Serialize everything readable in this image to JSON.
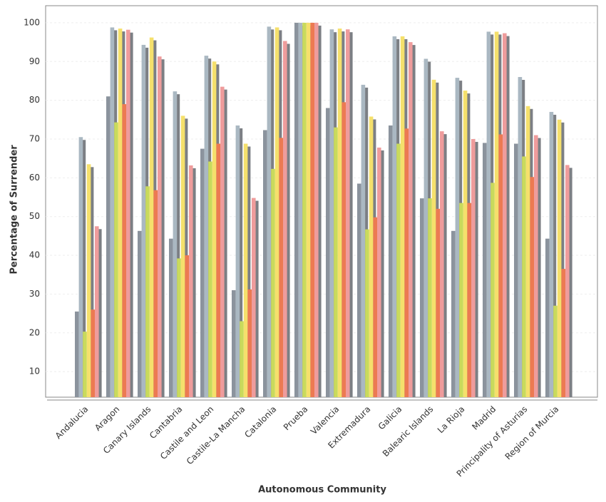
{
  "chart_data": {
    "type": "bar",
    "xlabel": "Autonomous Community",
    "ylabel": "Percentage of Surrender",
    "categories": [
      "Andalucia",
      "Aragon",
      "Canary Islands",
      "Cantabria",
      "Castile and Leon",
      "Castile-La Mancha",
      "Catalonia",
      "Prueba",
      "Valencia",
      "Extremadura",
      "Galicia",
      "Balearic Islands",
      "La Rioja",
      "Madrid",
      "Principality of Asturias",
      "Region of Murcia"
    ],
    "series": [
      {
        "color": "#8b939d",
        "values": [
          25.5,
          81,
          46.3,
          44.3,
          67.5,
          31,
          72.3,
          100,
          78,
          58.5,
          73.5,
          54.7,
          46.3,
          69,
          68.8,
          44.3
        ]
      },
      {
        "color": "#aab8c2",
        "values": [
          70.5,
          98.8,
          94.3,
          82.3,
          91.5,
          73.5,
          99,
          100,
          98.3,
          84,
          96.5,
          90.7,
          85.8,
          97.7,
          86,
          77
        ]
      },
      {
        "color": "#c9da5c",
        "values": [
          20.3,
          74.3,
          57.8,
          39.2,
          64.2,
          23,
          62.3,
          100,
          73,
          46.7,
          68.8,
          54.7,
          53.5,
          58.7,
          65.5,
          27
        ]
      },
      {
        "color": "#f5e06c",
        "values": [
          63.5,
          98.5,
          96.2,
          76,
          90,
          68.8,
          98.8,
          100,
          98.5,
          75.8,
          96.5,
          85.3,
          82.5,
          97.7,
          78.5,
          75
        ]
      },
      {
        "color": "#ec7a52",
        "values": [
          26,
          79,
          56.8,
          40,
          68.8,
          31.2,
          70.3,
          100,
          79.5,
          49.8,
          72.7,
          52,
          53.5,
          71.2,
          60.2,
          36.5
        ]
      },
      {
        "color": "#ef9c9c",
        "values": [
          47.5,
          98.2,
          91.3,
          63.2,
          83.5,
          54.8,
          95.3,
          100,
          98.3,
          67.8,
          95,
          72,
          70,
          97.3,
          71,
          63.3
        ]
      }
    ],
    "ylim": [
      3.4,
      104.4
    ],
    "yticks": [
      10,
      20,
      30,
      40,
      50,
      60,
      70,
      80,
      90,
      100
    ],
    "grid": true
  }
}
